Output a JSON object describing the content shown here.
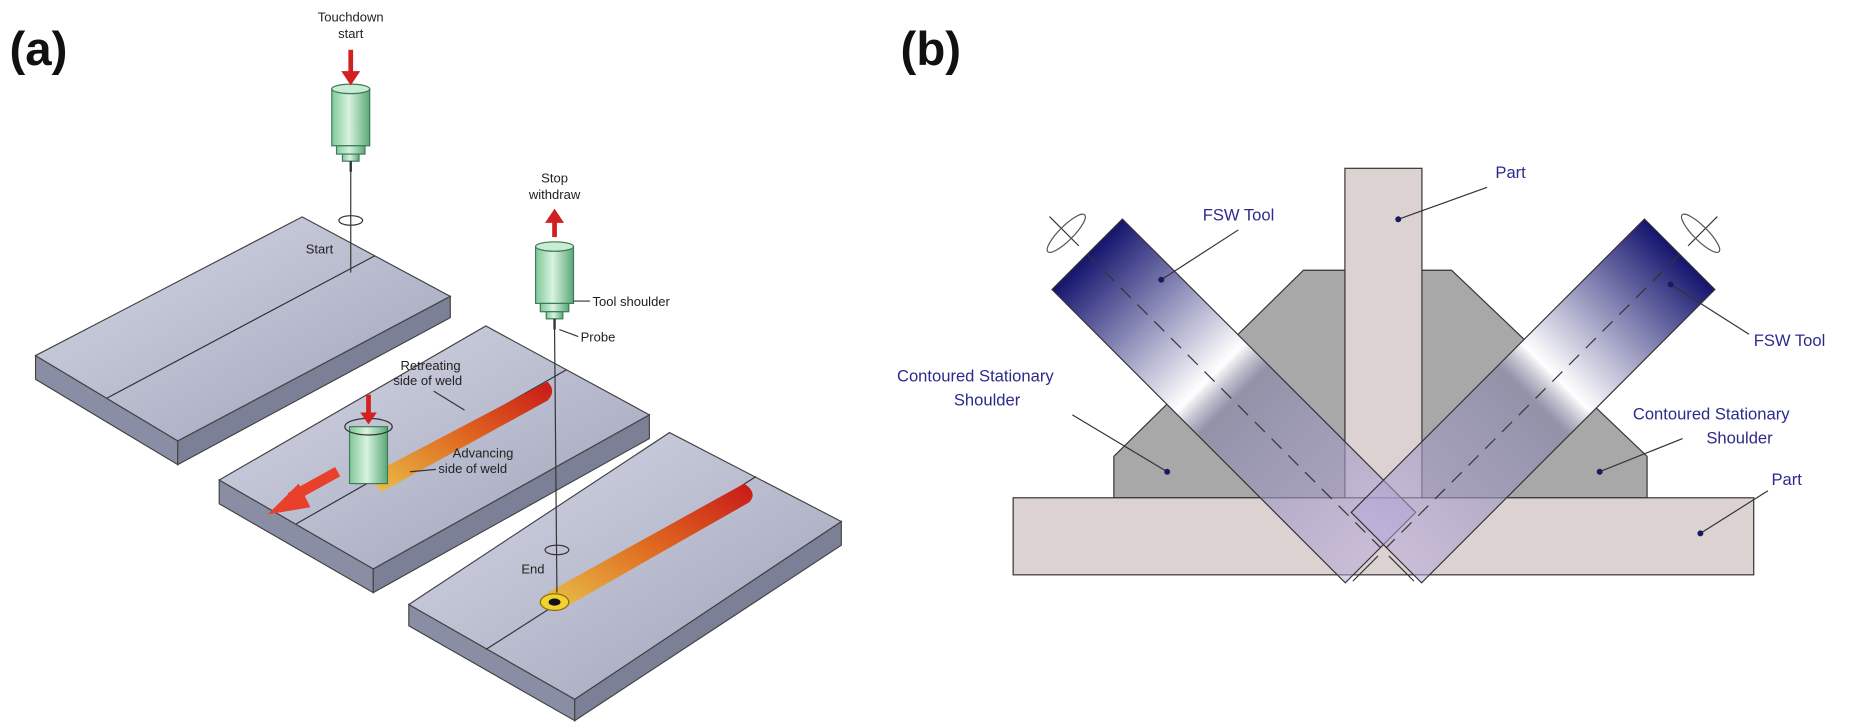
{
  "panel_a": {
    "label": "(a)",
    "touchdown": [
      "Touchdown",
      "start"
    ],
    "start": "Start",
    "stop": [
      "Stop",
      "withdraw"
    ],
    "tool_shoulder": "Tool shoulder",
    "probe": "Probe",
    "retreating": [
      "Retreating",
      "side of weld"
    ],
    "advancing": [
      "Advancing",
      "side of weld"
    ],
    "end": "End"
  },
  "panel_b": {
    "label": "(b)",
    "part_top": "Part",
    "fsw_tool_left": "FSW Tool",
    "fsw_tool_right": "FSW Tool",
    "shoulder_left": [
      "Contoured Stationary",
      "Shoulder"
    ],
    "shoulder_right": [
      "Contoured Stationary",
      "Shoulder"
    ],
    "part_bottom": "Part"
  }
}
